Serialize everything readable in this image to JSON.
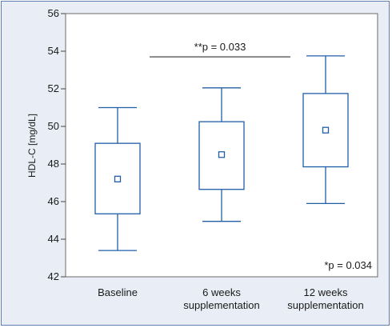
{
  "chart_data": {
    "type": "box",
    "ylabel": "HDL-C [mg/dL]",
    "ylim": [
      42,
      56
    ],
    "yticks": [
      42,
      44,
      46,
      48,
      50,
      52,
      54,
      56
    ],
    "categories": [
      "Baseline",
      "6 weeks supplementation",
      "12 weeks supplementation"
    ],
    "category_lines": [
      [
        "Baseline"
      ],
      [
        "6 weeks",
        "supplementation"
      ],
      [
        "12 weeks",
        "supplementation"
      ]
    ],
    "boxes": [
      {
        "whisker_low": 43.4,
        "q1": 45.35,
        "mean": 47.2,
        "q3": 49.1,
        "whisker_high": 51.0
      },
      {
        "whisker_low": 44.95,
        "q1": 46.65,
        "mean": 48.5,
        "q3": 50.25,
        "whisker_high": 52.05
      },
      {
        "whisker_low": 45.9,
        "q1": 47.85,
        "mean": 49.8,
        "q3": 51.75,
        "whisker_high": 53.75
      }
    ],
    "annotations": {
      "bracket_label": "**p = 0.033",
      "bracket_y": 53.7,
      "bracket_from": "Baseline",
      "bracket_to": "12 weeks supplementation",
      "corner_label": "*p = 0.034"
    },
    "colors": {
      "box": "#1f5fa8",
      "axis": "#444444",
      "plot_bg": "#ffffff",
      "frame_bg": "#e9eef6"
    }
  }
}
